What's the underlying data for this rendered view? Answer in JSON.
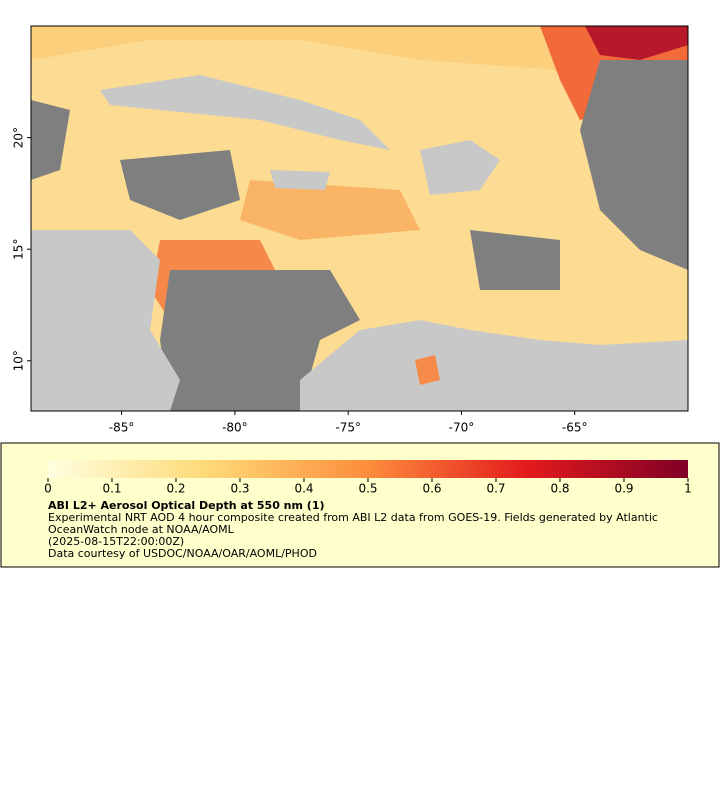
{
  "map": {
    "xlim": [
      -89,
      -60
    ],
    "ylim": [
      7.75,
      25
    ],
    "xticks": [
      {
        "value": -85,
        "label": "-85°"
      },
      {
        "value": -80,
        "label": "-80°"
      },
      {
        "value": -75,
        "label": "-75°"
      },
      {
        "value": -70,
        "label": "-70°"
      },
      {
        "value": -65,
        "label": "-65°"
      }
    ],
    "yticks": [
      {
        "value": 10,
        "label": "10°"
      },
      {
        "value": 15,
        "label": "15°"
      },
      {
        "value": 20,
        "label": "20°"
      }
    ]
  },
  "colorbar": {
    "lim": [
      0,
      1
    ],
    "ticks": [
      0,
      0.1,
      0.2,
      0.3,
      0.4,
      0.5,
      0.6,
      0.7,
      0.8,
      0.9,
      1
    ],
    "colors": [
      "#ffffe0",
      "#fed976",
      "#fd8d3c",
      "#e31a1c",
      "#800026"
    ]
  },
  "legend": {
    "title": "ABI L2+ Aerosol Optical Depth at 550 nm (1)",
    "description": "Experimental NRT AOD 4 hour composite created from ABI L2 data from GOES-19. Fields generated by Atlantic OceanWatch node at NOAA/AOML",
    "time": "(2025-08-15T22:00:00Z)",
    "credit": "Data courtesy of USDOC/NOAA/OAR/AOML/PHOD"
  }
}
